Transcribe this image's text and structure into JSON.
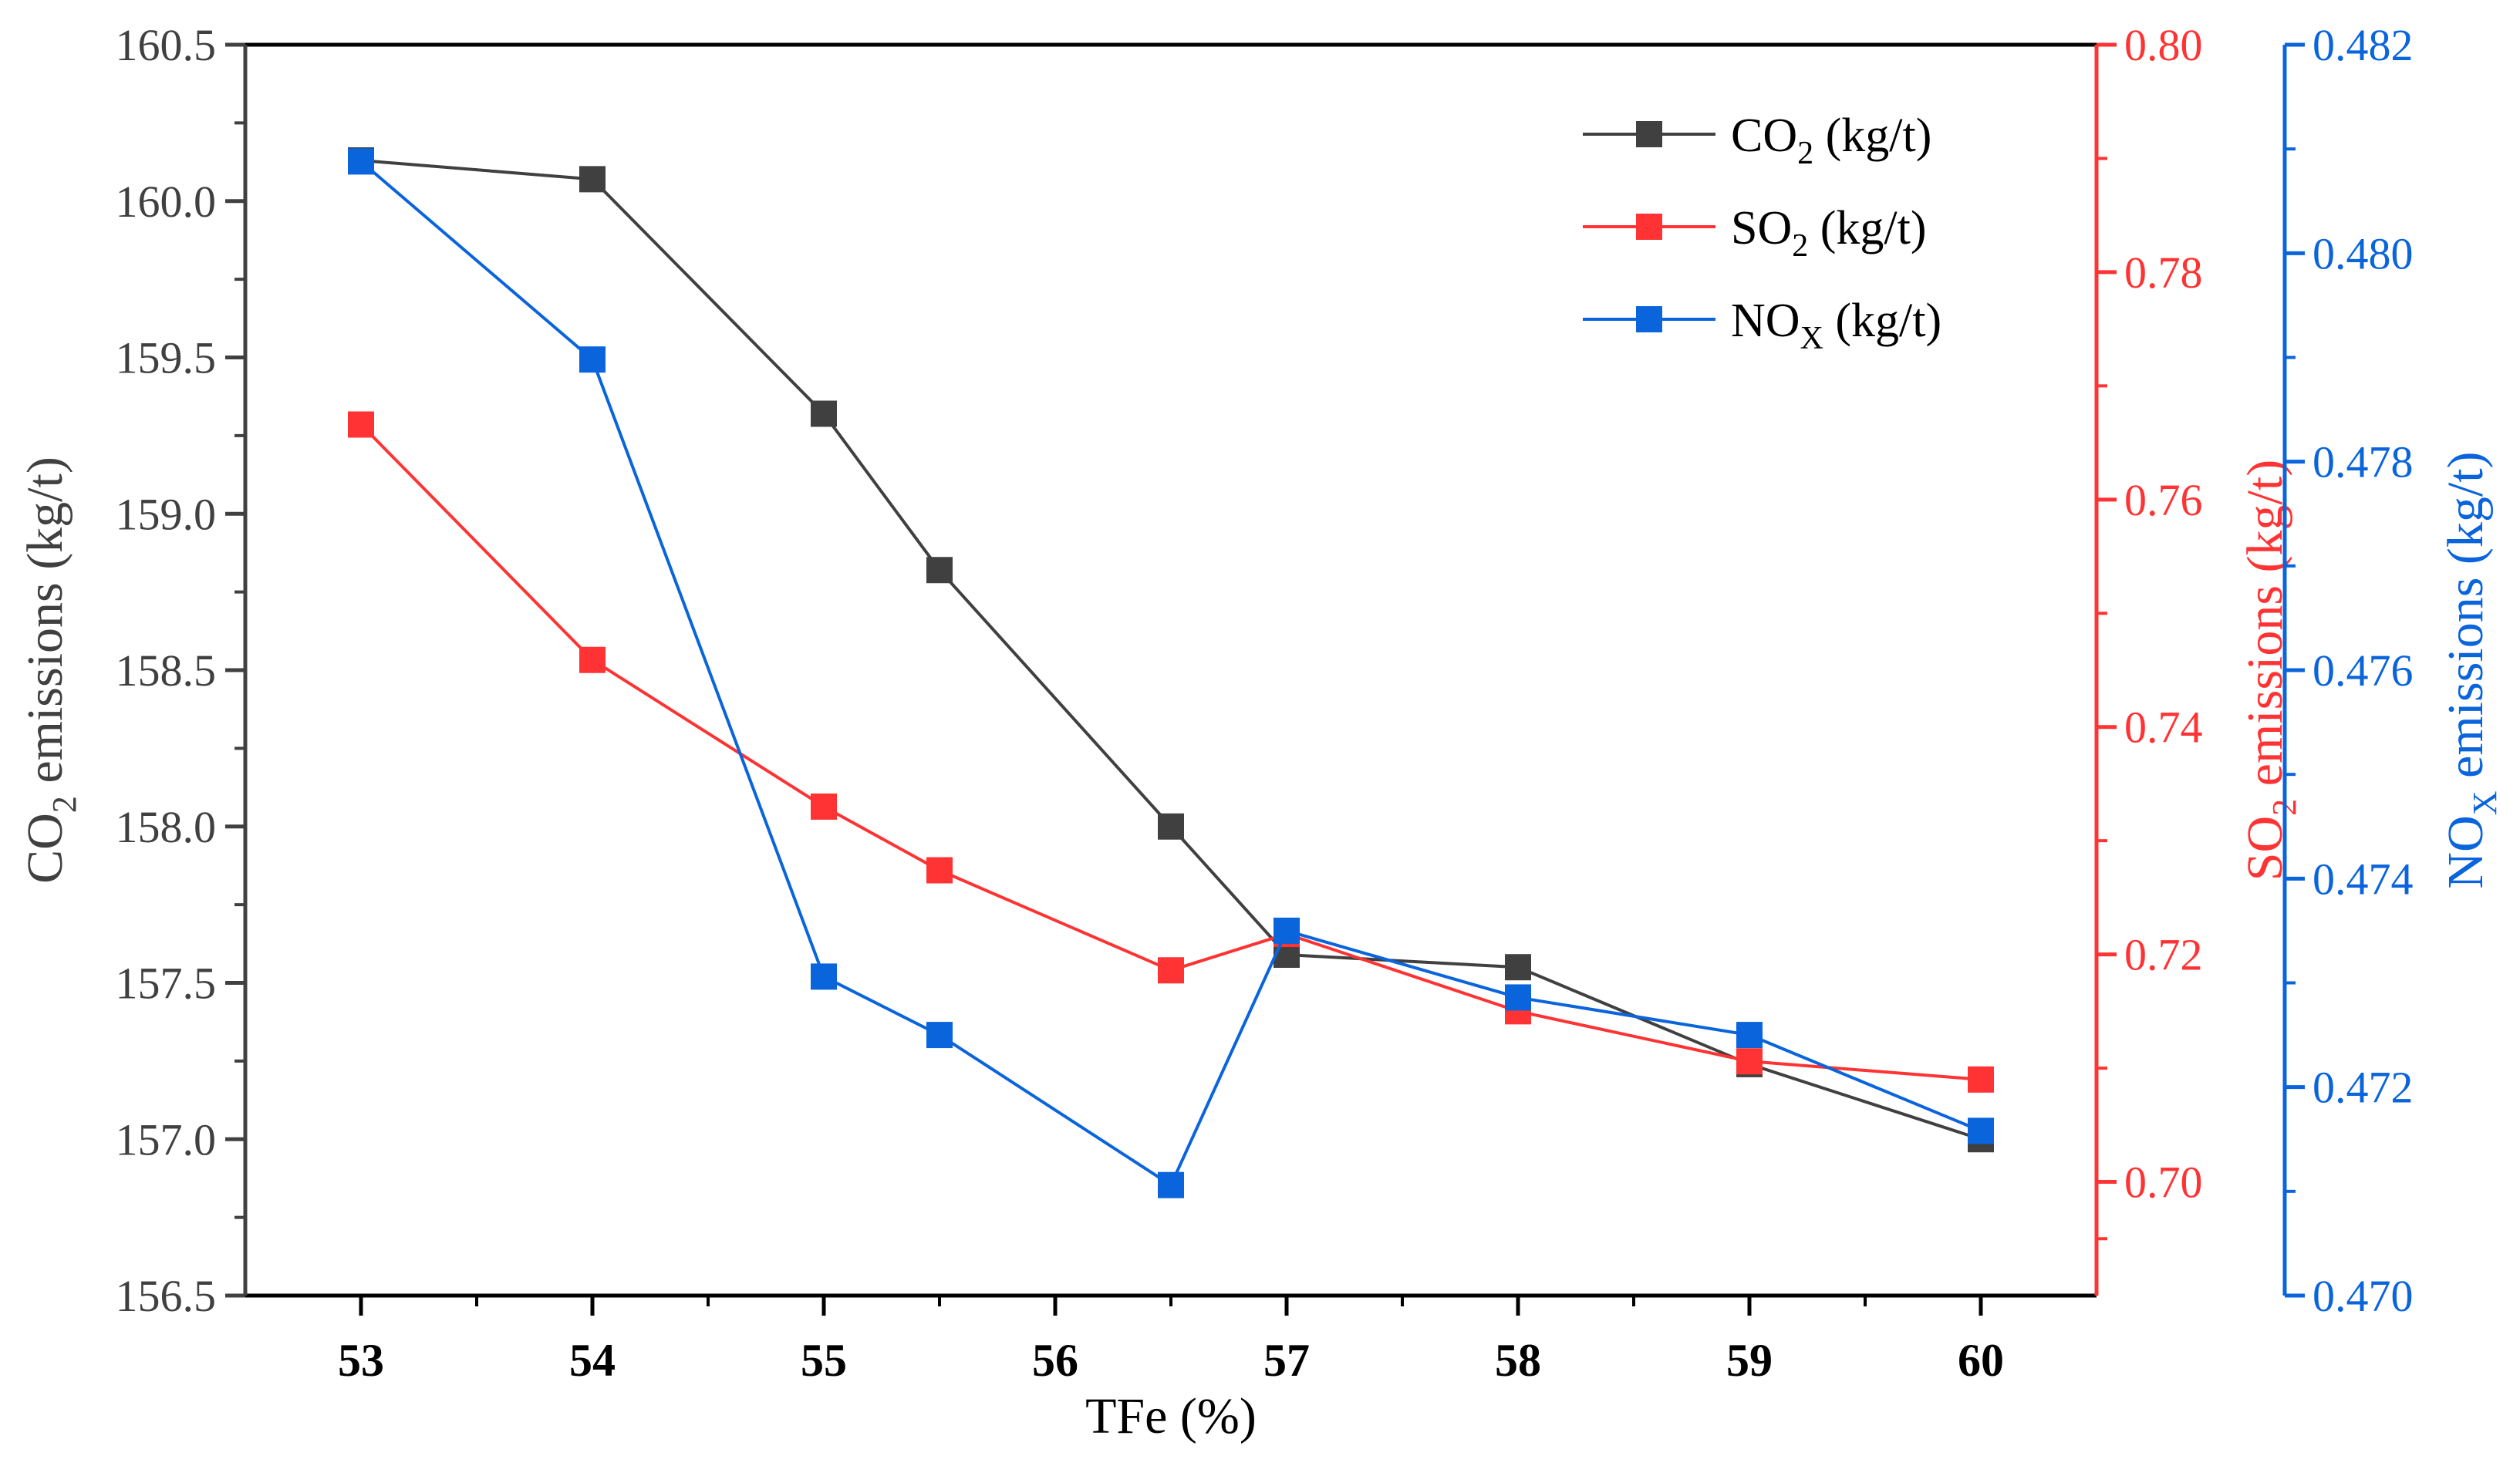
{
  "chart_data": {
    "type": "line",
    "xlabel": "TFe (%)",
    "x_ticks": [
      "53",
      "54",
      "55",
      "56",
      "57",
      "58",
      "59",
      "60"
    ],
    "x_range": [
      52.5,
      60.5
    ],
    "axes": [
      {
        "id": "co2",
        "side": "left",
        "label_main": "CO",
        "label_sub": "2",
        "label_rest": " emissions (kg/t)",
        "range": [
          156.5,
          160.5
        ],
        "ticks": [
          "156.5",
          "157.0",
          "157.5",
          "158.0",
          "158.5",
          "159.0",
          "159.5",
          "160.0",
          "160.5"
        ],
        "color": "#404040"
      },
      {
        "id": "so2",
        "side": "right-inner",
        "label_main": "SO",
        "label_sub": "2",
        "label_rest": " emissions (kg/t)",
        "range": [
          0.69,
          0.8
        ],
        "ticks": [
          "0.70",
          "0.72",
          "0.74",
          "0.76",
          "0.78",
          "0.80"
        ],
        "color": "#ff3333"
      },
      {
        "id": "nox",
        "side": "right-outer",
        "label_main": "NO",
        "label_sub": "X",
        "label_rest": " emissions (kg/t)",
        "range": [
          0.47,
          0.482
        ],
        "ticks": [
          "0.470",
          "0.472",
          "0.474",
          "0.476",
          "0.478",
          "0.480",
          "0.482"
        ],
        "color": "#0a64dc"
      }
    ],
    "series": [
      {
        "name_main": "CO",
        "name_sub": "2",
        "name_rest": " (kg/t)",
        "axis": "co2",
        "color": "#404040",
        "x": [
          53,
          54,
          55,
          55.5,
          56.5,
          57,
          58,
          59,
          60
        ],
        "y": [
          160.13,
          160.07,
          159.32,
          158.82,
          158.0,
          157.59,
          157.55,
          157.24,
          157.0
        ]
      },
      {
        "name_main": "SO",
        "name_sub": "2",
        "name_rest": " (kg/t)",
        "axis": "so2",
        "color": "#ff3333",
        "x": [
          53,
          54,
          55,
          55.5,
          56.5,
          57,
          58,
          59,
          60
        ],
        "y": [
          0.7666,
          0.7459,
          0.733,
          0.7274,
          0.7186,
          0.7218,
          0.715,
          0.7106,
          0.709
        ]
      },
      {
        "name_main": "NO",
        "name_sub": "X",
        "name_rest": " (kg/t)",
        "axis": "nox",
        "color": "#0a64dc",
        "x": [
          53,
          54,
          55,
          55.5,
          56.5,
          57,
          58,
          59,
          60
        ],
        "y": [
          0.48088,
          0.47898,
          0.47306,
          0.4725,
          0.47106,
          0.4735,
          0.47286,
          0.4725,
          0.47158
        ]
      }
    ],
    "legend_position": "top-right",
    "grid": false
  }
}
